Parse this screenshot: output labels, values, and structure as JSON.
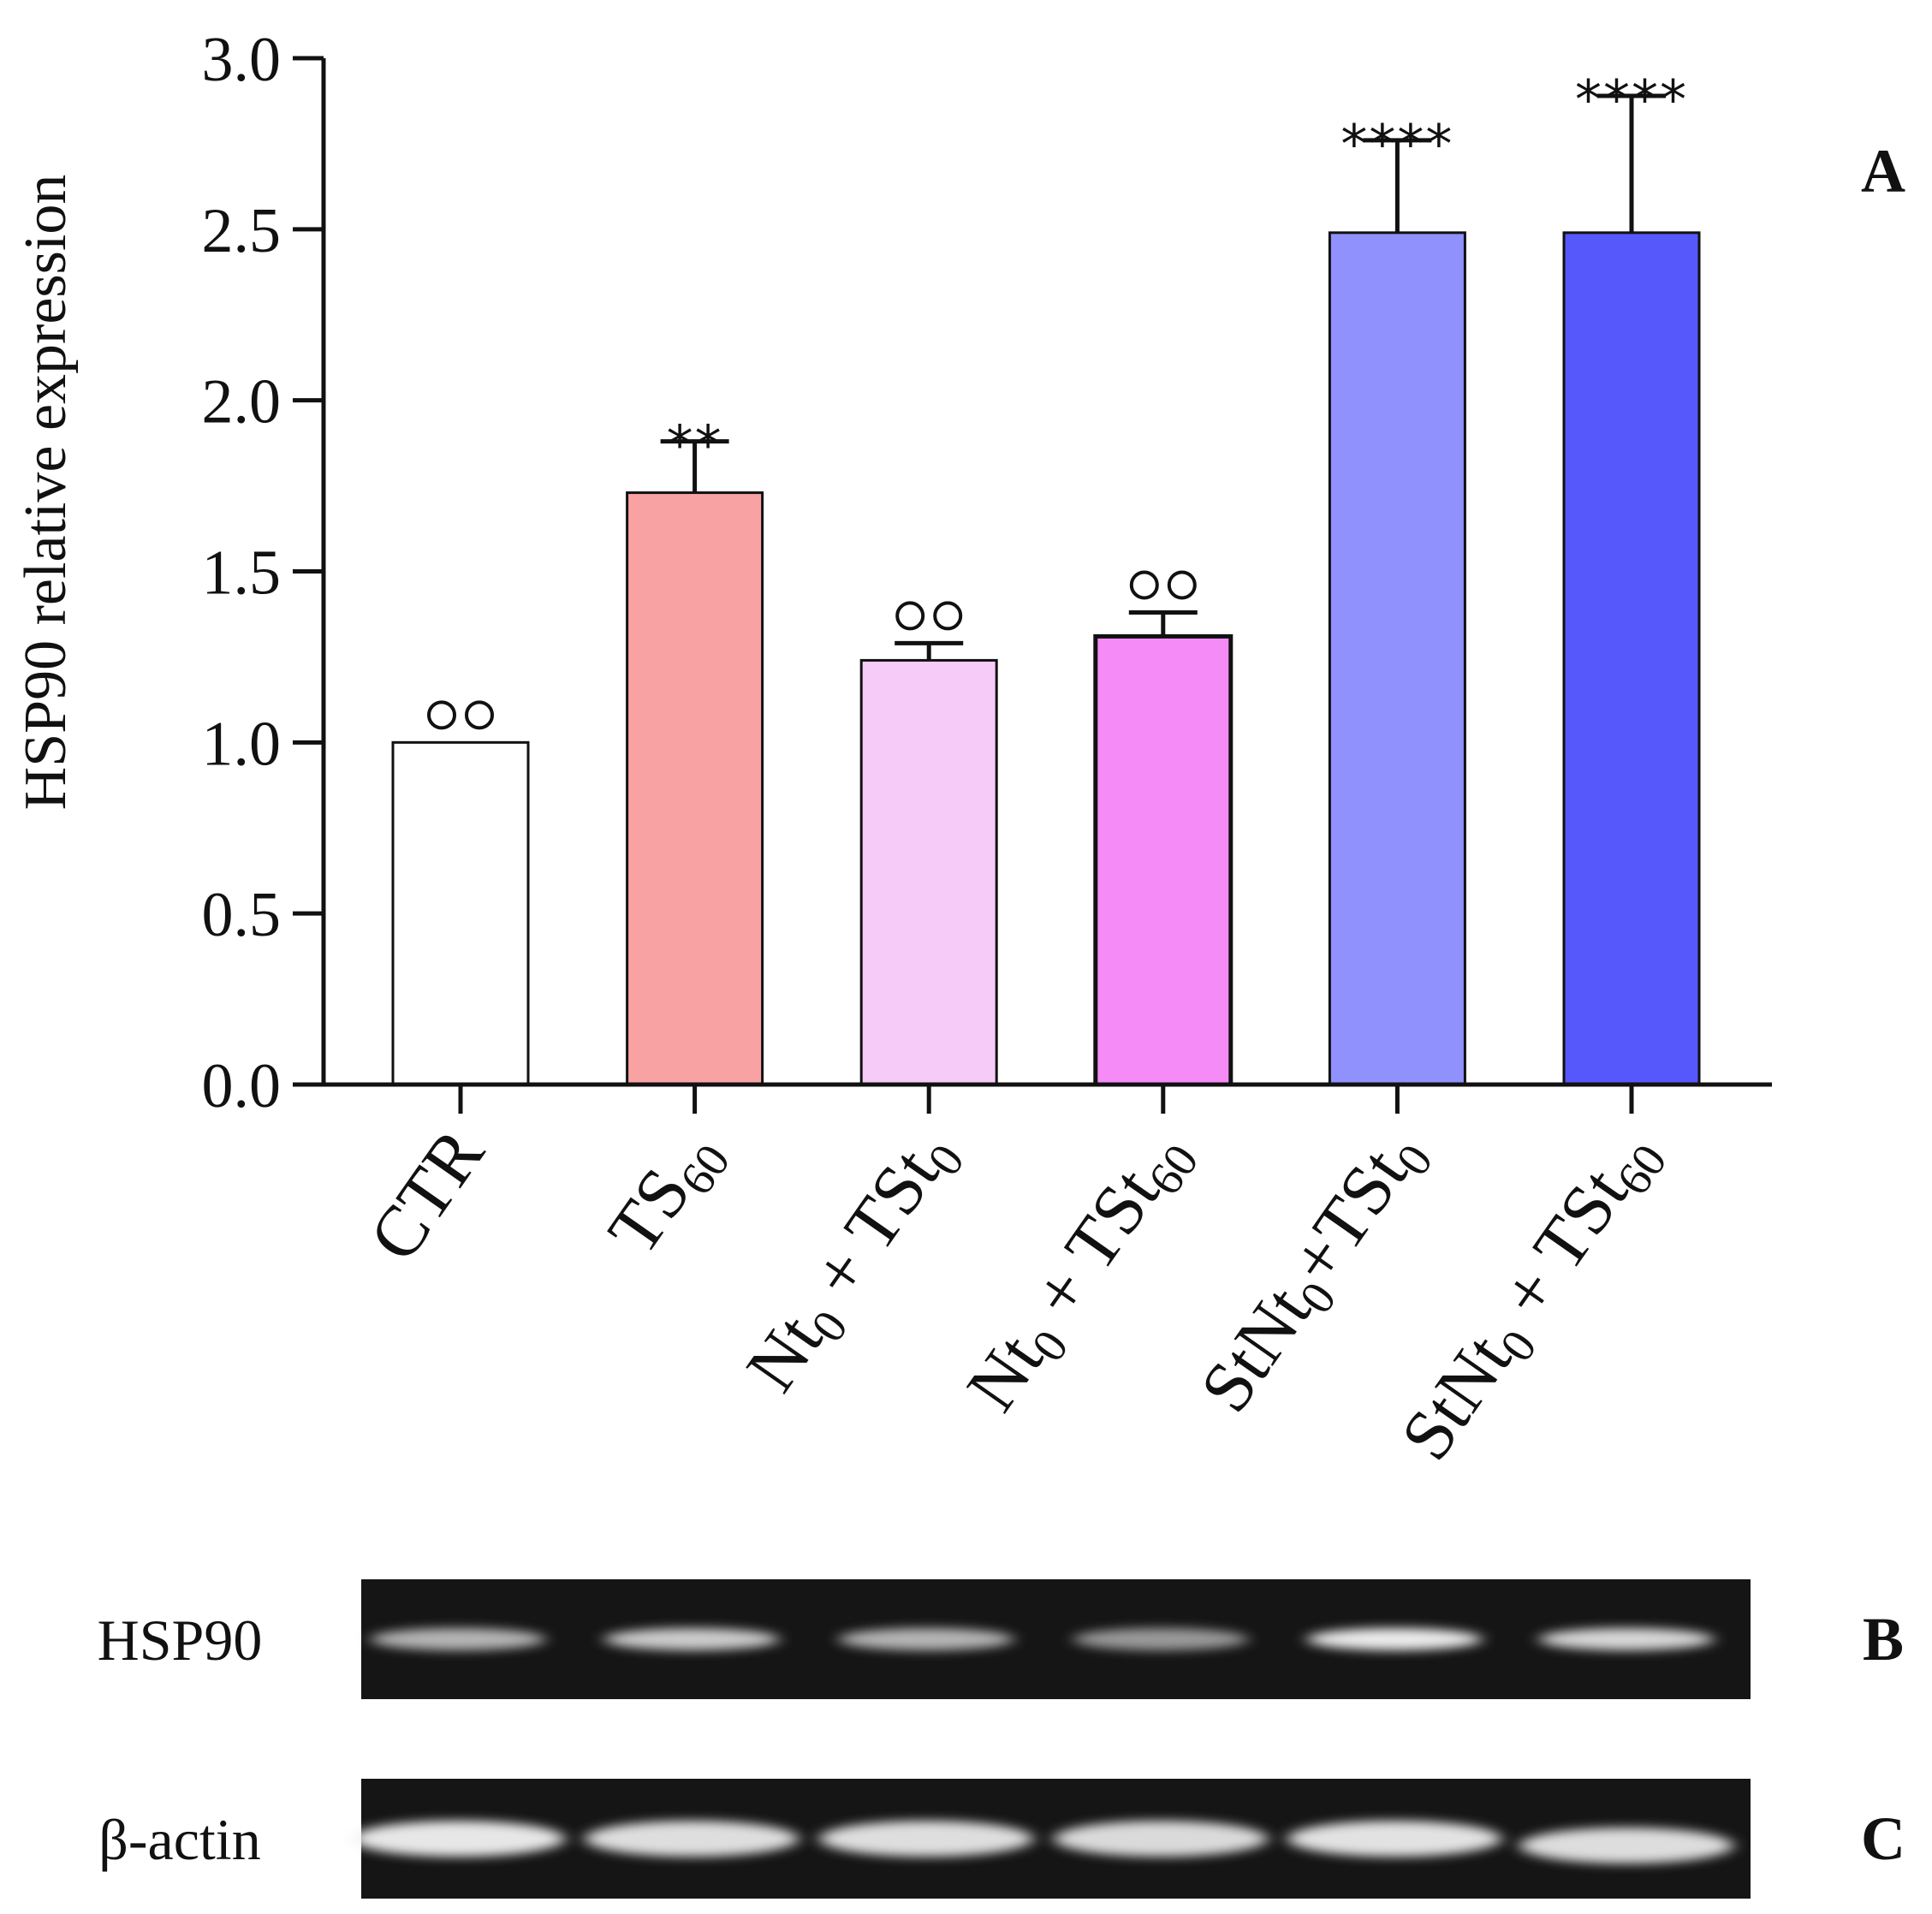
{
  "chart_data": {
    "type": "bar",
    "ylabel": "HSP90 relative expression",
    "ylim": [
      0,
      3.0
    ],
    "yticks": [
      0.0,
      0.5,
      1.0,
      1.5,
      2.0,
      2.5,
      3.0
    ],
    "ytick_labels": [
      "0.0",
      "0.5",
      "1.0",
      "1.5",
      "2.0",
      "2.5",
      "3.0"
    ],
    "categories": [
      {
        "main": "CTR",
        "parts": [
          {
            "t": "CTR",
            "sub": false
          }
        ]
      },
      {
        "main": "TS60",
        "parts": [
          {
            "t": "TS",
            "sub": false
          },
          {
            "t": "60",
            "sub": true
          }
        ]
      },
      {
        "main": "Nt0 + TSt0",
        "parts": [
          {
            "t": "Nt",
            "sub": false
          },
          {
            "t": "0",
            "sub": true
          },
          {
            "t": " + TSt",
            "sub": false
          },
          {
            "t": "0",
            "sub": true
          }
        ]
      },
      {
        "main": "Nt0 + TSt60",
        "parts": [
          {
            "t": "Nt",
            "sub": false
          },
          {
            "t": "0",
            "sub": true
          },
          {
            "t": " + TSt",
            "sub": false
          },
          {
            "t": "60",
            "sub": true
          }
        ]
      },
      {
        "main": "StNt0+TSt0",
        "parts": [
          {
            "t": "StNt",
            "sub": false
          },
          {
            "t": "0",
            "sub": true
          },
          {
            "t": "+TSt",
            "sub": false
          },
          {
            "t": "0",
            "sub": true
          }
        ]
      },
      {
        "main": "StNt0 + TSt60",
        "parts": [
          {
            "t": "StNt",
            "sub": false
          },
          {
            "t": "0",
            "sub": true
          },
          {
            "t": " + TSt",
            "sub": false
          },
          {
            "t": "60",
            "sub": true
          }
        ]
      }
    ],
    "values": [
      1.0,
      1.73,
      1.24,
      1.31,
      2.49,
      2.49
    ],
    "errors": [
      0.0,
      0.15,
      0.05,
      0.07,
      0.27,
      0.4
    ],
    "colors": [
      "#ffffff",
      "#f9a2a3",
      "#f6cbf7",
      "#f48bf6",
      "#9091fd",
      "#5758fc"
    ],
    "annotations": [
      "○○",
      "**",
      "○○",
      "○○",
      "****",
      "****"
    ],
    "panel_label": "A"
  },
  "blots": [
    {
      "label": "HSP90",
      "panel": "B",
      "intensities": [
        0.55,
        0.72,
        0.55,
        0.35,
        0.95,
        0.8
      ]
    },
    {
      "label": "β-actin",
      "panel": "C",
      "intensities": [
        0.92,
        0.85,
        0.85,
        0.82,
        0.88,
        0.84
      ]
    }
  ]
}
